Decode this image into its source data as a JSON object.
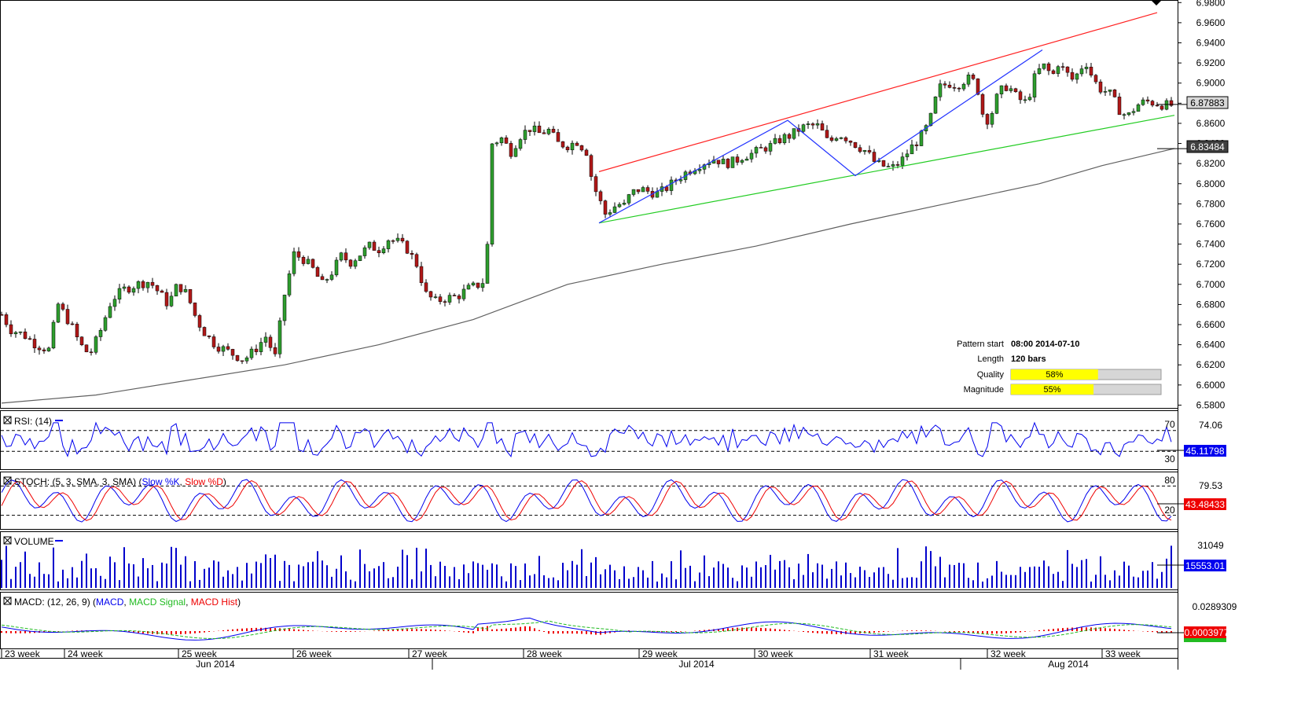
{
  "chart_data": {
    "type": "candlestick",
    "instrument_price_axis": {
      "ticks": [
        "6.9800",
        "6.9600",
        "6.9400",
        "6.9200",
        "6.9000",
        "6.8800",
        "6.8600",
        "6.8400",
        "6.8200",
        "6.8000",
        "6.7800",
        "6.7600",
        "6.7400",
        "6.7200",
        "6.7000",
        "6.6800",
        "6.6600",
        "6.6400",
        "6.6200",
        "6.6000",
        "6.5800"
      ],
      "ylim": [
        6.578,
        6.981
      ],
      "current_price": "6.87883",
      "ma_value": "6.83484"
    },
    "price_path": [
      [
        0,
        6.67
      ],
      [
        6,
        6.655
      ],
      [
        14,
        6.65
      ],
      [
        22,
        6.64
      ],
      [
        30,
        6.635
      ],
      [
        36,
        6.68
      ],
      [
        44,
        6.66
      ],
      [
        50,
        6.64
      ],
      [
        56,
        6.63
      ],
      [
        62,
        6.65
      ],
      [
        70,
        6.685
      ],
      [
        78,
        6.695
      ],
      [
        86,
        6.7
      ],
      [
        94,
        6.703
      ],
      [
        100,
        6.692
      ],
      [
        106,
        6.68
      ],
      [
        112,
        6.7
      ],
      [
        118,
        6.69
      ],
      [
        124,
        6.665
      ],
      [
        130,
        6.65
      ],
      [
        136,
        6.64
      ],
      [
        142,
        6.635
      ],
      [
        148,
        6.63
      ],
      [
        154,
        6.625
      ],
      [
        160,
        6.633
      ],
      [
        168,
        6.648
      ],
      [
        174,
        6.628
      ],
      [
        180,
        6.69
      ],
      [
        186,
        6.73
      ],
      [
        192,
        6.725
      ],
      [
        198,
        6.715
      ],
      [
        204,
        6.7
      ],
      [
        210,
        6.712
      ],
      [
        216,
        6.728
      ],
      [
        222,
        6.722
      ],
      [
        228,
        6.73
      ],
      [
        234,
        6.738
      ],
      [
        240,
        6.735
      ],
      [
        246,
        6.745
      ],
      [
        252,
        6.742
      ],
      [
        258,
        6.735
      ],
      [
        264,
        6.72
      ],
      [
        270,
        6.69
      ],
      [
        276,
        6.683
      ],
      [
        282,
        6.686
      ],
      [
        290,
        6.688
      ],
      [
        296,
        6.695
      ],
      [
        304,
        6.7
      ],
      [
        308,
        6.705
      ],
      [
        312,
        6.84
      ],
      [
        318,
        6.845
      ],
      [
        324,
        6.832
      ],
      [
        330,
        6.848
      ],
      [
        336,
        6.855
      ],
      [
        342,
        6.85
      ],
      [
        348,
        6.853
      ],
      [
        354,
        6.84
      ],
      [
        360,
        6.838
      ],
      [
        366,
        6.842
      ],
      [
        372,
        6.832
      ],
      [
        376,
        6.8
      ],
      [
        380,
        6.785
      ],
      [
        384,
        6.77
      ],
      [
        388,
        6.775
      ],
      [
        392,
        6.78
      ],
      [
        396,
        6.778
      ],
      [
        400,
        6.79
      ],
      [
        406,
        6.795
      ],
      [
        412,
        6.792
      ],
      [
        418,
        6.79
      ],
      [
        424,
        6.797
      ],
      [
        430,
        6.805
      ],
      [
        436,
        6.812
      ],
      [
        442,
        6.818
      ],
      [
        448,
        6.822
      ],
      [
        454,
        6.825
      ],
      [
        460,
        6.82
      ],
      [
        466,
        6.822
      ],
      [
        472,
        6.828
      ],
      [
        478,
        6.83
      ],
      [
        484,
        6.835
      ],
      [
        490,
        6.838
      ],
      [
        496,
        6.845
      ],
      [
        502,
        6.848
      ],
      [
        508,
        6.855
      ],
      [
        514,
        6.858
      ],
      [
        520,
        6.857
      ],
      [
        526,
        6.84
      ],
      [
        532,
        6.85
      ],
      [
        538,
        6.845
      ],
      [
        544,
        6.838
      ],
      [
        550,
        6.832
      ],
      [
        556,
        6.82
      ],
      [
        560,
        6.818
      ],
      [
        566,
        6.815
      ],
      [
        572,
        6.822
      ],
      [
        578,
        6.835
      ],
      [
        584,
        6.845
      ],
      [
        590,
        6.86
      ],
      [
        596,
        6.895
      ],
      [
        602,
        6.9
      ],
      [
        608,
        6.898
      ],
      [
        614,
        6.905
      ],
      [
        620,
        6.9
      ],
      [
        624,
        6.87
      ],
      [
        628,
        6.862
      ],
      [
        634,
        6.89
      ],
      [
        640,
        6.898
      ],
      [
        646,
        6.885
      ],
      [
        652,
        6.88
      ],
      [
        658,
        6.91
      ],
      [
        664,
        6.918
      ],
      [
        668,
        6.905
      ],
      [
        672,
        6.92
      ],
      [
        676,
        6.912
      ],
      [
        682,
        6.902
      ],
      [
        686,
        6.915
      ],
      [
        690,
        6.92
      ],
      [
        694,
        6.905
      ],
      [
        698,
        6.895
      ],
      [
        702,
        6.892
      ],
      [
        706,
        6.888
      ],
      [
        710,
        6.875
      ],
      [
        716,
        6.866
      ],
      [
        722,
        6.878
      ],
      [
        728,
        6.882
      ],
      [
        734,
        6.88
      ],
      [
        740,
        6.878
      ],
      [
        746,
        6.878
      ]
    ],
    "moving_average": [
      [
        0,
        6.582
      ],
      [
        60,
        6.59
      ],
      [
        120,
        6.605
      ],
      [
        180,
        6.62
      ],
      [
        240,
        6.64
      ],
      [
        300,
        6.665
      ],
      [
        360,
        6.7
      ],
      [
        420,
        6.72
      ],
      [
        480,
        6.738
      ],
      [
        540,
        6.76
      ],
      [
        600,
        6.78
      ],
      [
        660,
        6.8
      ],
      [
        700,
        6.818
      ],
      [
        746,
        6.835
      ]
    ],
    "channel_upper": [
      [
        380,
        6.812
      ],
      [
        735,
        6.97
      ]
    ],
    "channel_lower": [
      [
        380,
        6.761
      ],
      [
        746,
        6.868
      ]
    ],
    "zigzag": [
      [
        380,
        6.761
      ],
      [
        500,
        6.863
      ],
      [
        543,
        6.808
      ],
      [
        662,
        6.933
      ]
    ],
    "pattern_info": {
      "pattern_start_label": "Pattern start",
      "pattern_start": "08:00 2014-07-10",
      "length_label": "Length",
      "length": "120 bars",
      "quality_label": "Quality",
      "quality": "58%",
      "quality_value": 0.58,
      "magnitude_label": "Magnitude",
      "magnitude": "55%",
      "magnitude_value": 0.55
    },
    "rsi": {
      "title": "RSI: (14)",
      "levels": [
        "70",
        "30"
      ],
      "axis_value": "74.06",
      "current": "45.11798"
    },
    "stoch": {
      "title_prefix": "STOCH: (5, 3, SMA, 3, SMA)",
      "series_k": "Slow %K",
      "series_d": "Slow %D",
      "levels": [
        "80",
        "20"
      ],
      "axis_value": "79.53",
      "current": "43.48433"
    },
    "volume": {
      "title": "VOLUME",
      "axis_value": "31049",
      "current": "15553.01"
    },
    "macd": {
      "title_prefix": "MACD: (12, 26, 9)",
      "series_macd": "MACD",
      "series_signal": "MACD Signal",
      "series_hist": "MACD Hist",
      "axis_value": "0.0289309",
      "current": "-0.0003977"
    },
    "x_axis": {
      "weeks": [
        "23 week",
        "24 week",
        "25 week",
        "26 week",
        "27 week",
        "28 week",
        "29 week",
        "30 week",
        "31 week",
        "32 week",
        "33 week"
      ],
      "months": [
        "Jun 2014",
        "Jul 2014",
        "Aug 2014"
      ]
    },
    "colors": {
      "bull": "#2e9e2e",
      "bear": "#b01818",
      "channel_upper": "#ff2020",
      "channel_lower": "#22cc22",
      "zigzag": "#2233ff",
      "ma": "#606060",
      "line_blue": "#0000ee",
      "line_red": "#ee0000",
      "macd_signal": "#22bb22",
      "bar_yellow": "#ffff00"
    }
  }
}
